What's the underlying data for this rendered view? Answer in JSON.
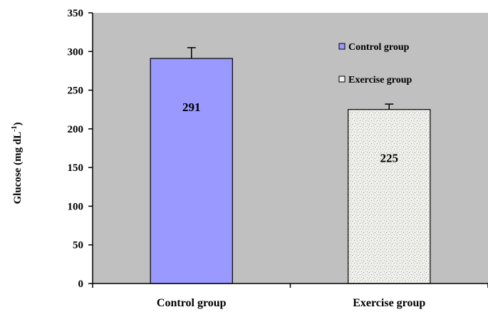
{
  "chart_data": {
    "type": "bar",
    "categories": [
      "Control group",
      "Exercise group"
    ],
    "values": [
      291,
      225
    ],
    "error": [
      14,
      7
    ],
    "data_labels": [
      "291",
      "225"
    ],
    "ylabel_main": "Glucose (mg dL",
    "ylabel_sup": "-1",
    "ylabel_close": ")",
    "ylim": [
      0,
      350
    ],
    "yticks": [
      0,
      50,
      100,
      150,
      200,
      250,
      300,
      350
    ],
    "grid": false,
    "plot_background": "#c0c0c0",
    "legend": {
      "placement": "top-right",
      "entries": [
        {
          "label": "Control group",
          "color": "#9999ff"
        },
        {
          "label": "Exercise group",
          "color": "#f2f2ee"
        }
      ]
    },
    "colors": [
      "#9999ff",
      "#ededea"
    ]
  }
}
